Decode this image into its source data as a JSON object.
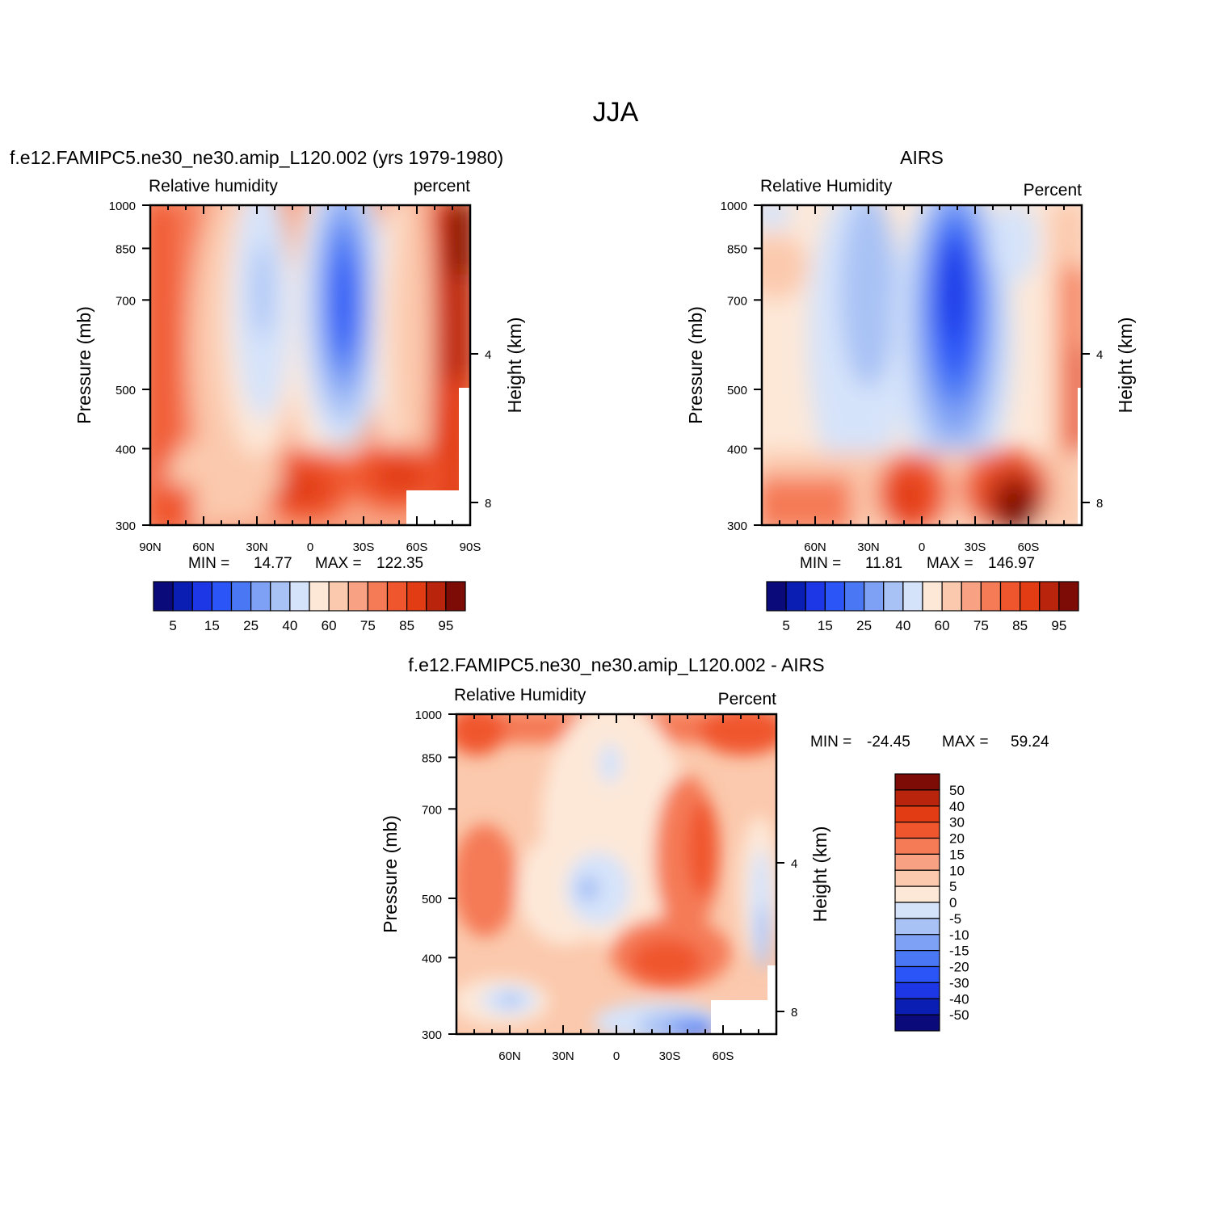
{
  "figure_title": "JJA",
  "palette_rh": [
    "#0a0a7a",
    "#0a1eb4",
    "#1e37e6",
    "#2b55f7",
    "#4a78f5",
    "#7ea0f5",
    "#a9c2f5",
    "#d5e3fa",
    "#fde8d8",
    "#fbc9ad",
    "#f8a283",
    "#f57a56",
    "#f0562e",
    "#e23c14",
    "#b8250c",
    "#7d0b06"
  ],
  "palette_diff": [
    "#0a0a7a",
    "#0a1eb4",
    "#1e37e6",
    "#2b55f7",
    "#4a78f5",
    "#7ea0f5",
    "#a9c2f5",
    "#d5e3fa",
    "#fde8d8",
    "#fbc9ad",
    "#f8a283",
    "#f57a56",
    "#f0562e",
    "#e23c14",
    "#b8250c",
    "#7d0b06"
  ],
  "chart_data": [
    {
      "type": "heatmap",
      "title": "f.e12.FAMIPC5.ne30_ne30.amip_L120.002 (yrs 1979-1980)",
      "left_label": "Relative humidity",
      "right_label": "percent",
      "xlabel": "",
      "ylabel": "Pressure (mb)",
      "ylabel_right": "Height (km)",
      "x_ticks": [
        "90N",
        "60N",
        "30N",
        "0",
        "30S",
        "60S",
        "90S"
      ],
      "y_ticks": [
        "300",
        "400",
        "500",
        "700",
        "850",
        "1000"
      ],
      "y_right_ticks": [
        "8",
        "4"
      ],
      "stats": {
        "min_label": "MIN =",
        "min": "14.77",
        "max_label": "MAX =",
        "max": "122.35"
      },
      "colorbar_labels": [
        "5",
        "15",
        "25",
        "40",
        "60",
        "75",
        "85",
        "95"
      ],
      "colorbar_levels": 16,
      "xlim": [
        90,
        -90
      ],
      "ylim": [
        1000,
        300
      ]
    },
    {
      "type": "heatmap",
      "title": "AIRS",
      "left_label": "Relative Humidity",
      "right_label": "Percent",
      "xlabel": "",
      "ylabel": "Pressure (mb)",
      "ylabel_right": "Height (km)",
      "x_ticks": [
        "60N",
        "30N",
        "0",
        "30S",
        "60S"
      ],
      "y_ticks": [
        "300",
        "400",
        "500",
        "700",
        "850",
        "1000"
      ],
      "y_right_ticks": [
        "8",
        "4"
      ],
      "stats": {
        "min_label": "MIN =",
        "min": "11.81",
        "max_label": "MAX =",
        "max": "146.97"
      },
      "colorbar_labels": [
        "5",
        "15",
        "25",
        "40",
        "60",
        "75",
        "85",
        "95"
      ],
      "colorbar_levels": 16,
      "xlim": [
        90,
        -90
      ],
      "ylim": [
        1000,
        300
      ]
    },
    {
      "type": "heatmap",
      "title": "f.e12.FAMIPC5.ne30_ne30.amip_L120.002 - AIRS",
      "left_label": "Relative Humidity",
      "right_label": "Percent",
      "xlabel": "",
      "ylabel": "Pressure (mb)",
      "ylabel_right": "Height (km)",
      "x_ticks": [
        "60N",
        "30N",
        "0",
        "30S",
        "60S"
      ],
      "y_ticks": [
        "300",
        "400",
        "500",
        "700",
        "850",
        "1000"
      ],
      "y_right_ticks": [
        "8",
        "4"
      ],
      "stats": {
        "min_label": "MIN =",
        "min": "-24.45",
        "max_label": "MAX =",
        "max": "59.24"
      },
      "colorbar_labels": [
        "50",
        "40",
        "30",
        "20",
        "15",
        "10",
        "5",
        "0",
        "-5",
        "-10",
        "-15",
        "-20",
        "-30",
        "-40",
        "-50"
      ],
      "colorbar_levels": 16,
      "xlim": [
        90,
        -90
      ],
      "ylim": [
        1000,
        300
      ]
    }
  ]
}
